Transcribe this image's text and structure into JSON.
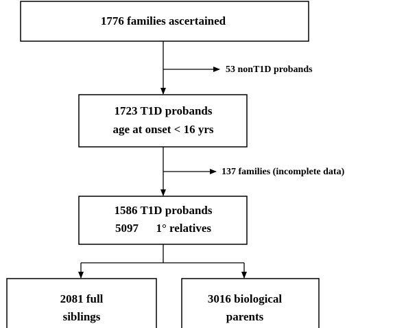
{
  "nodes": [
    {
      "lines": [
        "1776 families ascertained"
      ]
    },
    {
      "lines": [
        "1723 T1D probands",
        "age at onset < 16 yrs"
      ]
    },
    {
      "lines": [
        "1586 T1D probands",
        "5097      1° relatives"
      ]
    },
    {
      "lines": [
        "2081 full",
        "siblings"
      ]
    },
    {
      "lines": [
        "3016 biological",
        "parents"
      ]
    }
  ],
  "exclusions": [
    {
      "label": "53 nonT1D probands"
    },
    {
      "label": "137 families (incomplete data)"
    }
  ]
}
